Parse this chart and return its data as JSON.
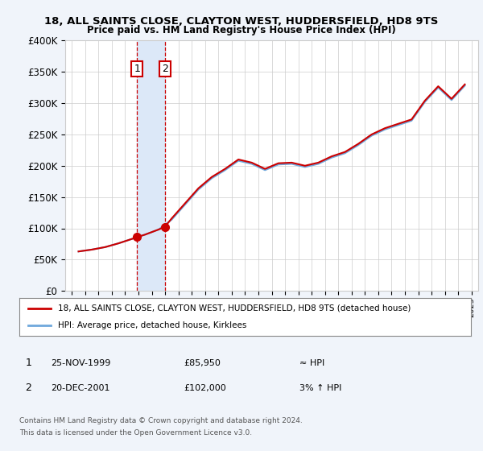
{
  "title1": "18, ALL SAINTS CLOSE, CLAYTON WEST, HUDDERSFIELD, HD8 9TS",
  "title2": "Price paid vs. HM Land Registry's House Price Index (HPI)",
  "ylabel_ticks": [
    "£0",
    "£50K",
    "£100K",
    "£150K",
    "£200K",
    "£250K",
    "£300K",
    "£350K",
    "£400K"
  ],
  "ytick_values": [
    0,
    50000,
    100000,
    150000,
    200000,
    250000,
    300000,
    350000,
    400000
  ],
  "ylim": [
    0,
    400000
  ],
  "sale1_date_num": 1999.9,
  "sale1_price": 85950,
  "sale1_label": "1",
  "sale2_date_num": 2001.97,
  "sale2_price": 102000,
  "sale2_label": "2",
  "hpi_color": "#6fa8dc",
  "price_color": "#cc0000",
  "sale_dot_color": "#cc0000",
  "legend_line1": "18, ALL SAINTS CLOSE, CLAYTON WEST, HUDDERSFIELD, HD8 9TS (detached house)",
  "legend_line2": "HPI: Average price, detached house, Kirklees",
  "table_row1": [
    "1",
    "25-NOV-1999",
    "£85,950",
    "≈ HPI"
  ],
  "table_row2": [
    "2",
    "20-DEC-2001",
    "£102,000",
    "3% ↑ HPI"
  ],
  "footnote1": "Contains HM Land Registry data © Crown copyright and database right 2024.",
  "footnote2": "This data is licensed under the Open Government Licence v3.0.",
  "xstart": 1995,
  "xend": 2025,
  "background_color": "#f0f4fa",
  "plot_bg": "#ffffff",
  "shade_color": "#dce8f8",
  "grid_color": "#cccccc"
}
